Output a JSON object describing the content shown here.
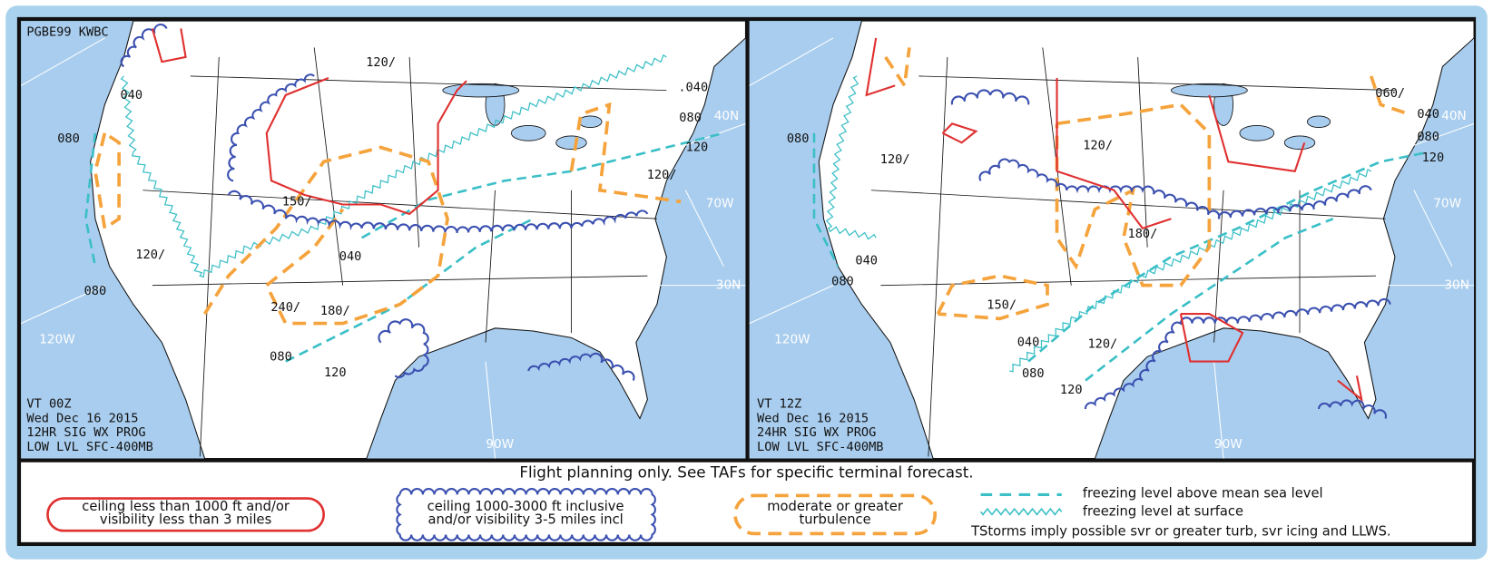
{
  "left_panel": {
    "header": "PGBE99 KWBC",
    "valid": "VT 00Z",
    "date": "Wed Dec 16 2015",
    "product": "12HR SIG WX PROG",
    "level": "LOW LVL SFC-400MB",
    "labels": [
      "040",
      "080",
      "120/",
      "080",
      "120W",
      "120/",
      "150/",
      "040",
      "240/",
      "180/",
      "080",
      "120",
      "90W",
      ".040",
      "080",
      "40N",
      "120",
      "120/",
      "70W",
      "30N"
    ]
  },
  "right_panel": {
    "valid": "VT 12Z",
    "date": "Wed Dec 16 2015",
    "product": "24HR SIG WX PROG",
    "level": "LOW LVL SFC-400MB",
    "labels": [
      "080",
      "120/",
      "040",
      "080",
      "120W",
      "120/",
      "180/",
      "150/",
      "040",
      "120/",
      "080",
      "120",
      "90W",
      "060/",
      "040",
      "40N",
      "080",
      "120",
      "70W",
      "30N"
    ]
  },
  "legend": {
    "note": "Flight planning only. See TAFs for specific terminal forecast.",
    "ifr": [
      "ceiling less than 1000 ft and/or",
      "visibility less than 3 miles"
    ],
    "mvfr": [
      "ceiling 1000-3000 ft inclusive",
      "and/or visibility 3-5 miles incl"
    ],
    "turbulence": [
      "moderate or greater",
      "turbulence"
    ],
    "freezing_msl": "freezing level above mean sea level",
    "freezing_sfc": "freezing level at surface",
    "tstorms": "TStorms imply possible svr or greater turb, svr icing and LLWS."
  }
}
